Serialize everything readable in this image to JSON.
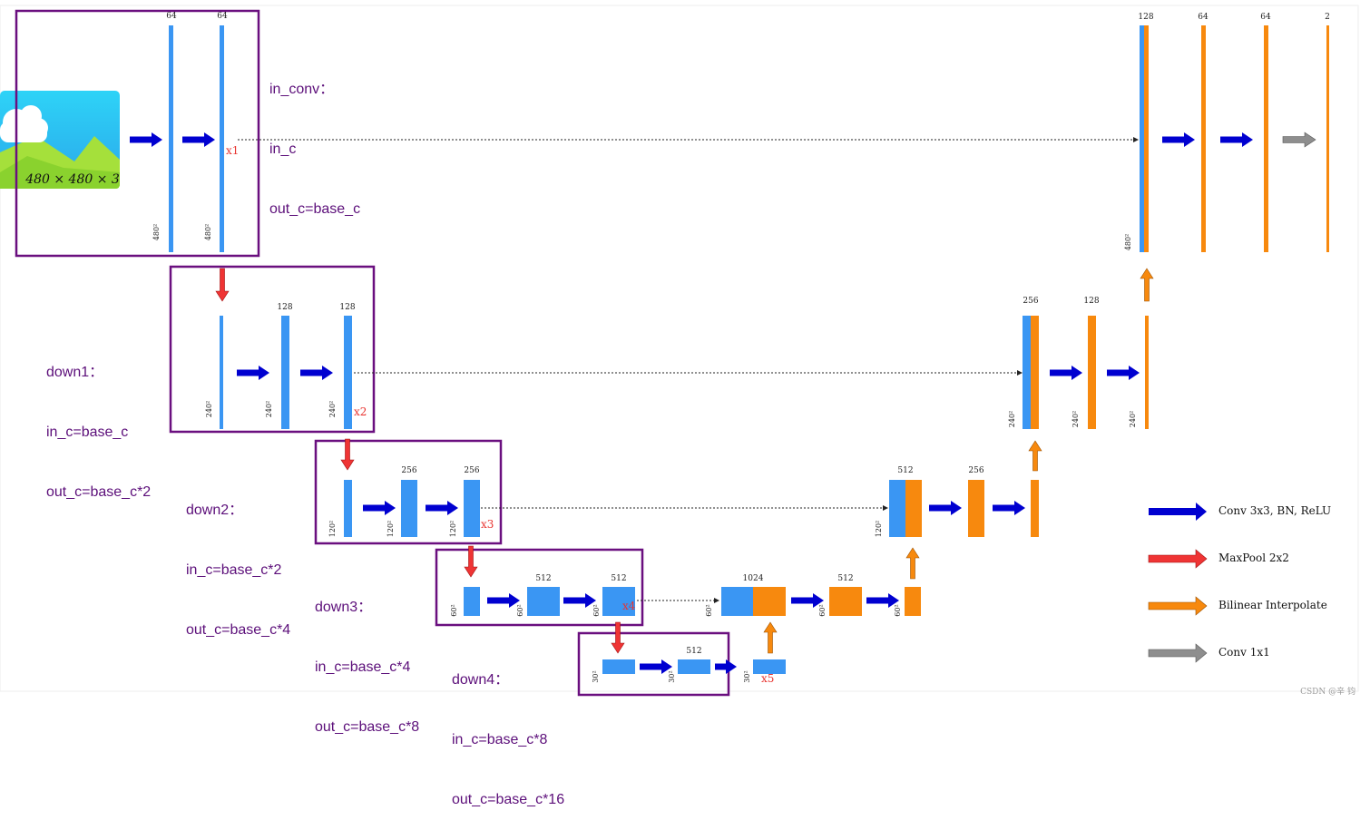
{
  "colors": {
    "blue_bar": "#3a96f3",
    "orange_bar": "#f7890e",
    "arrow_conv": "#0000d0",
    "arrow_pool": "#ef3434",
    "arrow_up": "#f7890e",
    "arrow_1x1": "#8e8e8e",
    "box": "#6a0f7f",
    "label": "#5c0f7a",
    "xmark": "#e8332f"
  },
  "input_image": {
    "caption": "480 × 480 × 3",
    "icon": "landscape-image-icon"
  },
  "blocks": [
    {
      "id": "in_conv",
      "lines": [
        "in_conv：",
        "in_c",
        "out_c=base_c"
      ]
    },
    {
      "id": "down1",
      "lines": [
        "down1：",
        "in_c=base_c",
        "out_c=base_c*2"
      ]
    },
    {
      "id": "down2",
      "lines": [
        "down2：",
        "in_c=base_c*2",
        "out_c=base_c*4"
      ]
    },
    {
      "id": "down3",
      "lines": [
        "down3：",
        "in_c=base_c*4",
        "out_c=base_c*8"
      ]
    },
    {
      "id": "down4",
      "lines": [
        "down4：",
        "in_c=base_c*8",
        "out_c=base_c*16"
      ]
    }
  ],
  "skip_marks": [
    "x1",
    "x2",
    "x3",
    "x4",
    "x5"
  ],
  "channels": {
    "l1": [
      "64",
      "64"
    ],
    "l2": [
      "128",
      "128"
    ],
    "l3": [
      "256",
      "256"
    ],
    "l4": [
      "512",
      "512"
    ],
    "l5": [
      "512"
    ],
    "u4": [
      "1024",
      "512"
    ],
    "u3": [
      "512",
      "256"
    ],
    "u2": [
      "256",
      "128"
    ],
    "u1": [
      "128",
      "64",
      "64",
      "2"
    ]
  },
  "sizes": {
    "s480": "480²",
    "s240": "240²",
    "s120": "120²",
    "s60": "60²",
    "s30": "30²"
  },
  "legend": [
    {
      "label": "Conv 3x3, BN, ReLU",
      "icon": "blue-arrow-icon"
    },
    {
      "label": "MaxPool 2x2",
      "icon": "red-arrow-icon"
    },
    {
      "label": "Bilinear Interpolate",
      "icon": "orange-arrow-icon"
    },
    {
      "label": "Conv 1x1",
      "icon": "gray-arrow-icon"
    }
  ],
  "watermark": "CSDN @辛 钧"
}
